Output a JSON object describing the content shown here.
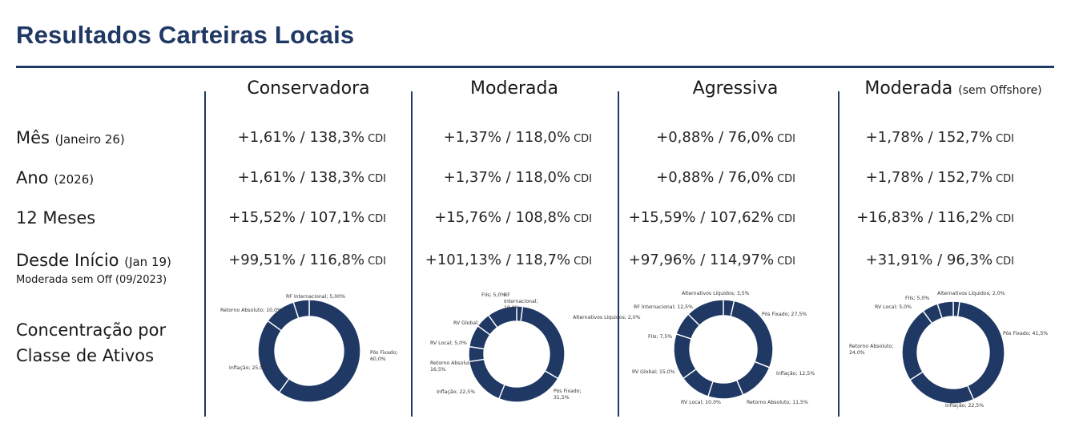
{
  "title": "Resultados Carteiras Locais",
  "columns": [
    {
      "name": "Conservadora",
      "sub": ""
    },
    {
      "name": "Moderada",
      "sub": ""
    },
    {
      "name": "Agressiva",
      "sub": ""
    },
    {
      "name": "Moderada",
      "sub": "(sem Offshore)"
    }
  ],
  "rows": [
    {
      "label": "Mês",
      "sub": "(Janeiro 26)",
      "note": "",
      "values": [
        "+1,61% / 138,3%",
        "+1,37% / 118,0%",
        "+0,88% / 76,0%",
        "+1,78% / 152,7%"
      ]
    },
    {
      "label": "Ano",
      "sub": "(2026)",
      "note": "",
      "values": [
        "+1,61% / 138,3%",
        "+1,37% / 118,0%",
        "+0,88% / 76,0%",
        "+1,78% / 152,7%"
      ]
    },
    {
      "label": "12 Meses",
      "sub": "",
      "note": "",
      "values": [
        "+15,52% / 107,1%",
        "+15,76% / 108,8%",
        "+15,59% / 107,62%",
        "+16,83% / 116,2%"
      ]
    },
    {
      "label": "Desde Início",
      "sub": "(Jan 19)",
      "note": "Moderada sem Off (09/2023)",
      "values": [
        "+99,51% / 116,8%",
        "+101,13% / 118,7%",
        "+97,96% / 114,97%",
        "+31,91% / 96,3%"
      ]
    }
  ],
  "unit": "CDI",
  "concentration_label": [
    "Concentração por",
    "Classe de Ativos"
  ],
  "colors": {
    "accent": "#1f3864",
    "donut": "#1f3864"
  },
  "chart_data": [
    {
      "type": "pie",
      "donut": true,
      "portfolio": "Conservadora",
      "slices": [
        {
          "label": "Pós Fixado",
          "value": 60.0,
          "text": "Pós Fixado;\n60,0%"
        },
        {
          "label": "Inflação",
          "value": 25.0,
          "text": "Inflação; 25,0%"
        },
        {
          "label": "Retorno Absoluto",
          "value": 10.0,
          "text": "Retorno Absoluto; 10,0%"
        },
        {
          "label": "RF Internacional",
          "value": 5.0,
          "text": "RF Internacional; 5,00%"
        }
      ]
    },
    {
      "type": "pie",
      "donut": true,
      "portfolio": "Moderada",
      "slices": [
        {
          "label": "Alternativos Líquidos",
          "value": 2.0,
          "text": "Alternativos Líquidos; 2,0%"
        },
        {
          "label": "Pós Fixado",
          "value": 31.5,
          "text": "Pós Fixado;\n31,5%"
        },
        {
          "label": "Inflação",
          "value": 22.5,
          "text": "Inflação; 22,5%"
        },
        {
          "label": "Retorno Absoluto",
          "value": 16.5,
          "text": "Retorno Absoluto;\n16,5%"
        },
        {
          "label": "RV Local",
          "value": 5.0,
          "text": "RV Local; 5,0%"
        },
        {
          "label": "RV Global",
          "value": 7.5,
          "text": "RV Global; 7,5%"
        },
        {
          "label": "FIIs",
          "value": 5.0,
          "text": "FIIs; 5,0%"
        },
        {
          "label": "RF Internacional",
          "value": 10.0,
          "text": "RF\nInternacional;\n10,0%"
        }
      ]
    },
    {
      "type": "pie",
      "donut": true,
      "portfolio": "Agressiva",
      "slices": [
        {
          "label": "Alternativos Líquidos",
          "value": 3.5,
          "text": "Alternativos Líquidos; 3,5%"
        },
        {
          "label": "Pós Fixado",
          "value": 27.5,
          "text": "Pós Fixado; 27,5%"
        },
        {
          "label": "Inflação",
          "value": 12.5,
          "text": "Inflação; 12,5%"
        },
        {
          "label": "Retorno Absoluto",
          "value": 11.5,
          "text": "Retorno Absoluto; 11,5%"
        },
        {
          "label": "RV Local",
          "value": 10.0,
          "text": "RV Local; 10,0%"
        },
        {
          "label": "RV Global",
          "value": 15.0,
          "text": "RV Global; 15,0%"
        },
        {
          "label": "FIIs",
          "value": 7.5,
          "text": "FIIs; 7,5%"
        },
        {
          "label": "RF Internacional",
          "value": 12.5,
          "text": "RF Internacional; 12,5%"
        }
      ]
    },
    {
      "type": "pie",
      "donut": true,
      "portfolio": "Moderada (sem Offshore)",
      "slices": [
        {
          "label": "Alternativos Líquidos",
          "value": 2.0,
          "text": "Alternativos Líquidos; 2,0%"
        },
        {
          "label": "Pós Fixado",
          "value": 41.5,
          "text": "Pós Fixado; 41,5%"
        },
        {
          "label": "Inflação",
          "value": 22.5,
          "text": "Inflação; 22,5%"
        },
        {
          "label": "Retorno Absoluto",
          "value": 24.0,
          "text": "Retorno Absoluto;\n24,0%"
        },
        {
          "label": "RV Local",
          "value": 5.0,
          "text": "RV Local; 5,0%"
        },
        {
          "label": "FIIs",
          "value": 5.0,
          "text": "FIIs; 5,0%"
        }
      ]
    }
  ]
}
